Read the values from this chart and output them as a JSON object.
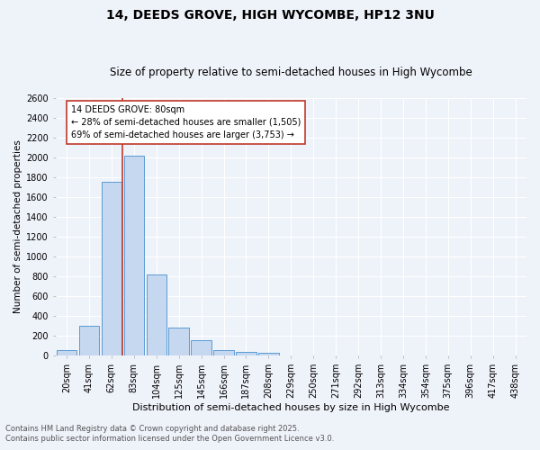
{
  "title": "14, DEEDS GROVE, HIGH WYCOMBE, HP12 3NU",
  "subtitle": "Size of property relative to semi-detached houses in High Wycombe",
  "xlabel": "Distribution of semi-detached houses by size in High Wycombe",
  "ylabel": "Number of semi-detached properties",
  "footnote1": "Contains HM Land Registry data © Crown copyright and database right 2025.",
  "footnote2": "Contains public sector information licensed under the Open Government Licence v3.0.",
  "bin_labels": [
    "20sqm",
    "41sqm",
    "62sqm",
    "83sqm",
    "104sqm",
    "125sqm",
    "145sqm",
    "166sqm",
    "187sqm",
    "208sqm",
    "229sqm",
    "250sqm",
    "271sqm",
    "292sqm",
    "313sqm",
    "334sqm",
    "354sqm",
    "375sqm",
    "396sqm",
    "417sqm",
    "438sqm"
  ],
  "bar_values": [
    50,
    295,
    1755,
    2020,
    820,
    285,
    155,
    50,
    35,
    25,
    0,
    0,
    0,
    0,
    0,
    0,
    0,
    0,
    0,
    0,
    0
  ],
  "bar_color": "#c5d8f0",
  "bar_edge_color": "#5b9bd5",
  "vline_color": "#c0392b",
  "annotation_text": "14 DEEDS GROVE: 80sqm\n← 28% of semi-detached houses are smaller (1,505)\n69% of semi-detached houses are larger (3,753) →",
  "annotation_box_color": "#ffffff",
  "annotation_box_edge": "#c0392b",
  "ylim": [
    0,
    2600
  ],
  "yticks": [
    0,
    200,
    400,
    600,
    800,
    1000,
    1200,
    1400,
    1600,
    1800,
    2000,
    2200,
    2400,
    2600
  ],
  "background_color": "#eef2f9",
  "grid_color": "#ffffff",
  "title_fontsize": 10,
  "subtitle_fontsize": 8.5,
  "ylabel_fontsize": 7.5,
  "xlabel_fontsize": 8,
  "tick_fontsize": 7,
  "annot_fontsize": 7,
  "footnote_fontsize": 6
}
